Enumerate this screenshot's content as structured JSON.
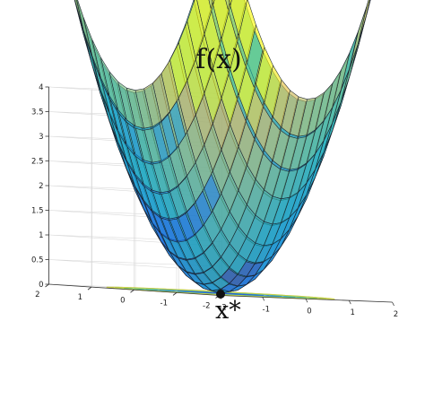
{
  "chart_data": {
    "type": "surface",
    "function": "x1^2 + x2^2",
    "title": "f(x)",
    "xlim": [
      -2,
      2
    ],
    "ylim": [
      -2,
      2
    ],
    "zlim": [
      0,
      4
    ],
    "mesh_steps": 20,
    "x_ticks": [
      "-2",
      "-1",
      "0",
      "1",
      "2"
    ],
    "y_ticks": [
      "-2",
      "-1",
      "0",
      "1",
      "2"
    ],
    "z_ticks": [
      "0",
      "0.5",
      "1",
      "1.5",
      "2",
      "2.5",
      "3",
      "3.5",
      "4"
    ],
    "contour_levels": [
      0.25,
      0.5,
      1,
      1.5,
      2,
      2.5,
      3,
      3.5
    ],
    "contour_colors": [
      "#1f3fbf",
      "#2a5bd7",
      "#3477d8",
      "#2f9ad0",
      "#3bb3b0",
      "#5cc185",
      "#9bcb53",
      "#cbd14a"
    ],
    "minimum": {
      "label": "x*",
      "x": 0,
      "y": 0,
      "z": 0
    },
    "grid": true,
    "alpha": 0.65
  }
}
